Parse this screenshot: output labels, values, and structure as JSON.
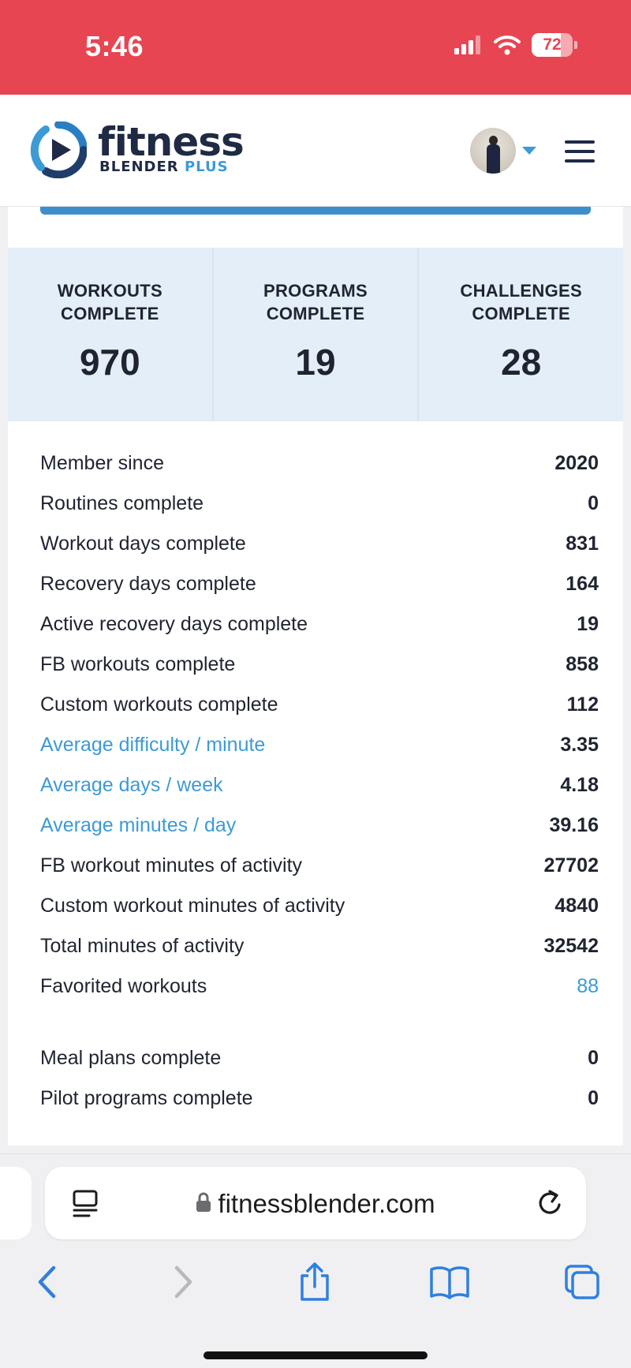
{
  "status_bar": {
    "time": "5:46",
    "battery": "72",
    "battery_level": 0.72
  },
  "header": {
    "logo_word1": "fitness",
    "logo_word2": "BLENDER",
    "logo_word3": "PLUS"
  },
  "summary": [
    {
      "label_line1": "WORKOUTS",
      "label_line2": "COMPLETE",
      "value": "970"
    },
    {
      "label_line1": "PROGRAMS",
      "label_line2": "COMPLETE",
      "value": "19"
    },
    {
      "label_line1": "CHALLENGES",
      "label_line2": "COMPLETE",
      "value": "28"
    }
  ],
  "stats": [
    {
      "label": "Member since",
      "value": "2020"
    },
    {
      "label": "Routines complete",
      "value": "0"
    },
    {
      "label": "Workout days complete",
      "value": "831"
    },
    {
      "label": "Recovery days complete",
      "value": "164"
    },
    {
      "label": "Active recovery days complete",
      "value": "19"
    },
    {
      "label": "FB workouts complete",
      "value": "858"
    },
    {
      "label": "Custom workouts complete",
      "value": "112"
    },
    {
      "label": "Average difficulty / minute",
      "value": "3.35"
    },
    {
      "label": "Average days / week",
      "value": "4.18"
    },
    {
      "label": "Average minutes / day",
      "value": "39.16"
    },
    {
      "label": "FB workout minutes of activity",
      "value": "27702"
    },
    {
      "label": "Custom workout minutes of activity",
      "value": "4840"
    },
    {
      "label": "Total minutes of activity",
      "value": "32542"
    },
    {
      "label": "Favorited workouts",
      "value": "88"
    }
  ],
  "stats_extra": [
    {
      "label": "Meal plans complete",
      "value": "0"
    },
    {
      "label": "Pilot programs complete",
      "value": "0"
    }
  ],
  "browser": {
    "url": "fitnessblender.com"
  },
  "colors": {
    "status_bar": "#e84552",
    "accent": "#3d9ad6",
    "summary_bg": "#e4eef8",
    "text": "#1f2430"
  }
}
